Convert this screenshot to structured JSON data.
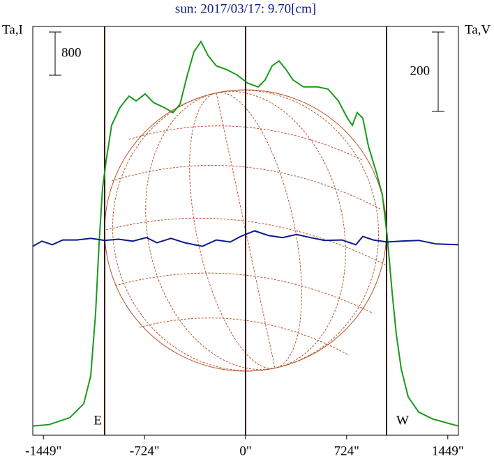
{
  "chart_data": {
    "type": "line",
    "title": "sun: 2017/03/17: 9.70[cm]",
    "ylabel": "Ta,I",
    "y2label": "Ta,V",
    "xlim": [
      -1525,
      1525
    ],
    "xticks": [
      {
        "value": -1449,
        "label": "-1449\""
      },
      {
        "value": -724,
        "label": "-724\""
      },
      {
        "value": 0,
        "label": "0\""
      },
      {
        "value": 724,
        "label": "724\""
      },
      {
        "value": 1449,
        "label": "1449\""
      }
    ],
    "ylim": [
      -170,
      7400
    ],
    "y2lim": [
      -480,
      550
    ],
    "markers": [
      -1010,
      0,
      1010
    ],
    "marker_labels": [
      "E",
      "W"
    ],
    "scale_bars": [
      {
        "label": 800,
        "axis": "y"
      },
      {
        "label": 200,
        "axis": "y2"
      }
    ],
    "series": [
      {
        "name": "Ta,I",
        "color": "#1a9a1a",
        "x": [
          -1525,
          -1410,
          -1260,
          -1160,
          -1110,
          -1075,
          -1050,
          -1025,
          -1000,
          -960,
          -900,
          -835,
          -785,
          -720,
          -660,
          -585,
          -520,
          -470,
          -420,
          -370,
          -320,
          -270,
          -210,
          -135,
          -60,
          15,
          90,
          140,
          190,
          240,
          290,
          340,
          415,
          515,
          590,
          665,
          730,
          765,
          800,
          840,
          880,
          940,
          980,
          1015,
          1050,
          1080,
          1115,
          1165,
          1240,
          1340,
          1525
        ],
        "values": [
          0,
          26,
          155,
          413,
          929,
          2090,
          3380,
          4410,
          4900,
          5570,
          5900,
          6110,
          6020,
          6150,
          5990,
          5900,
          5805,
          5960,
          6475,
          6930,
          7120,
          6865,
          6670,
          6600,
          6500,
          6350,
          6280,
          6410,
          6670,
          6760,
          6600,
          6410,
          6280,
          6280,
          6240,
          6020,
          5700,
          5570,
          5805,
          5700,
          5185,
          4670,
          4280,
          3510,
          2475,
          1700,
          1060,
          540,
          260,
          130,
          0
        ]
      },
      {
        "name": "Ta,V",
        "color": "#0a1a8a",
        "axis": "y2",
        "x": [
          -1525,
          -1460,
          -1385,
          -1310,
          -1210,
          -1110,
          -1010,
          -910,
          -810,
          -710,
          -635,
          -535,
          -435,
          -310,
          -210,
          -110,
          -35,
          65,
          165,
          265,
          365,
          465,
          565,
          690,
          790,
          840,
          915,
          1015,
          1115,
          1240,
          1365,
          1525
        ],
        "values": [
          -4,
          9,
          0,
          12,
          12,
          16,
          11,
          14,
          9,
          18,
          5,
          16,
          5,
          -4,
          12,
          7,
          21,
          35,
          23,
          18,
          26,
          18,
          11,
          12,
          0,
          21,
          12,
          7,
          9,
          11,
          2,
          0
        ]
      }
    ]
  }
}
